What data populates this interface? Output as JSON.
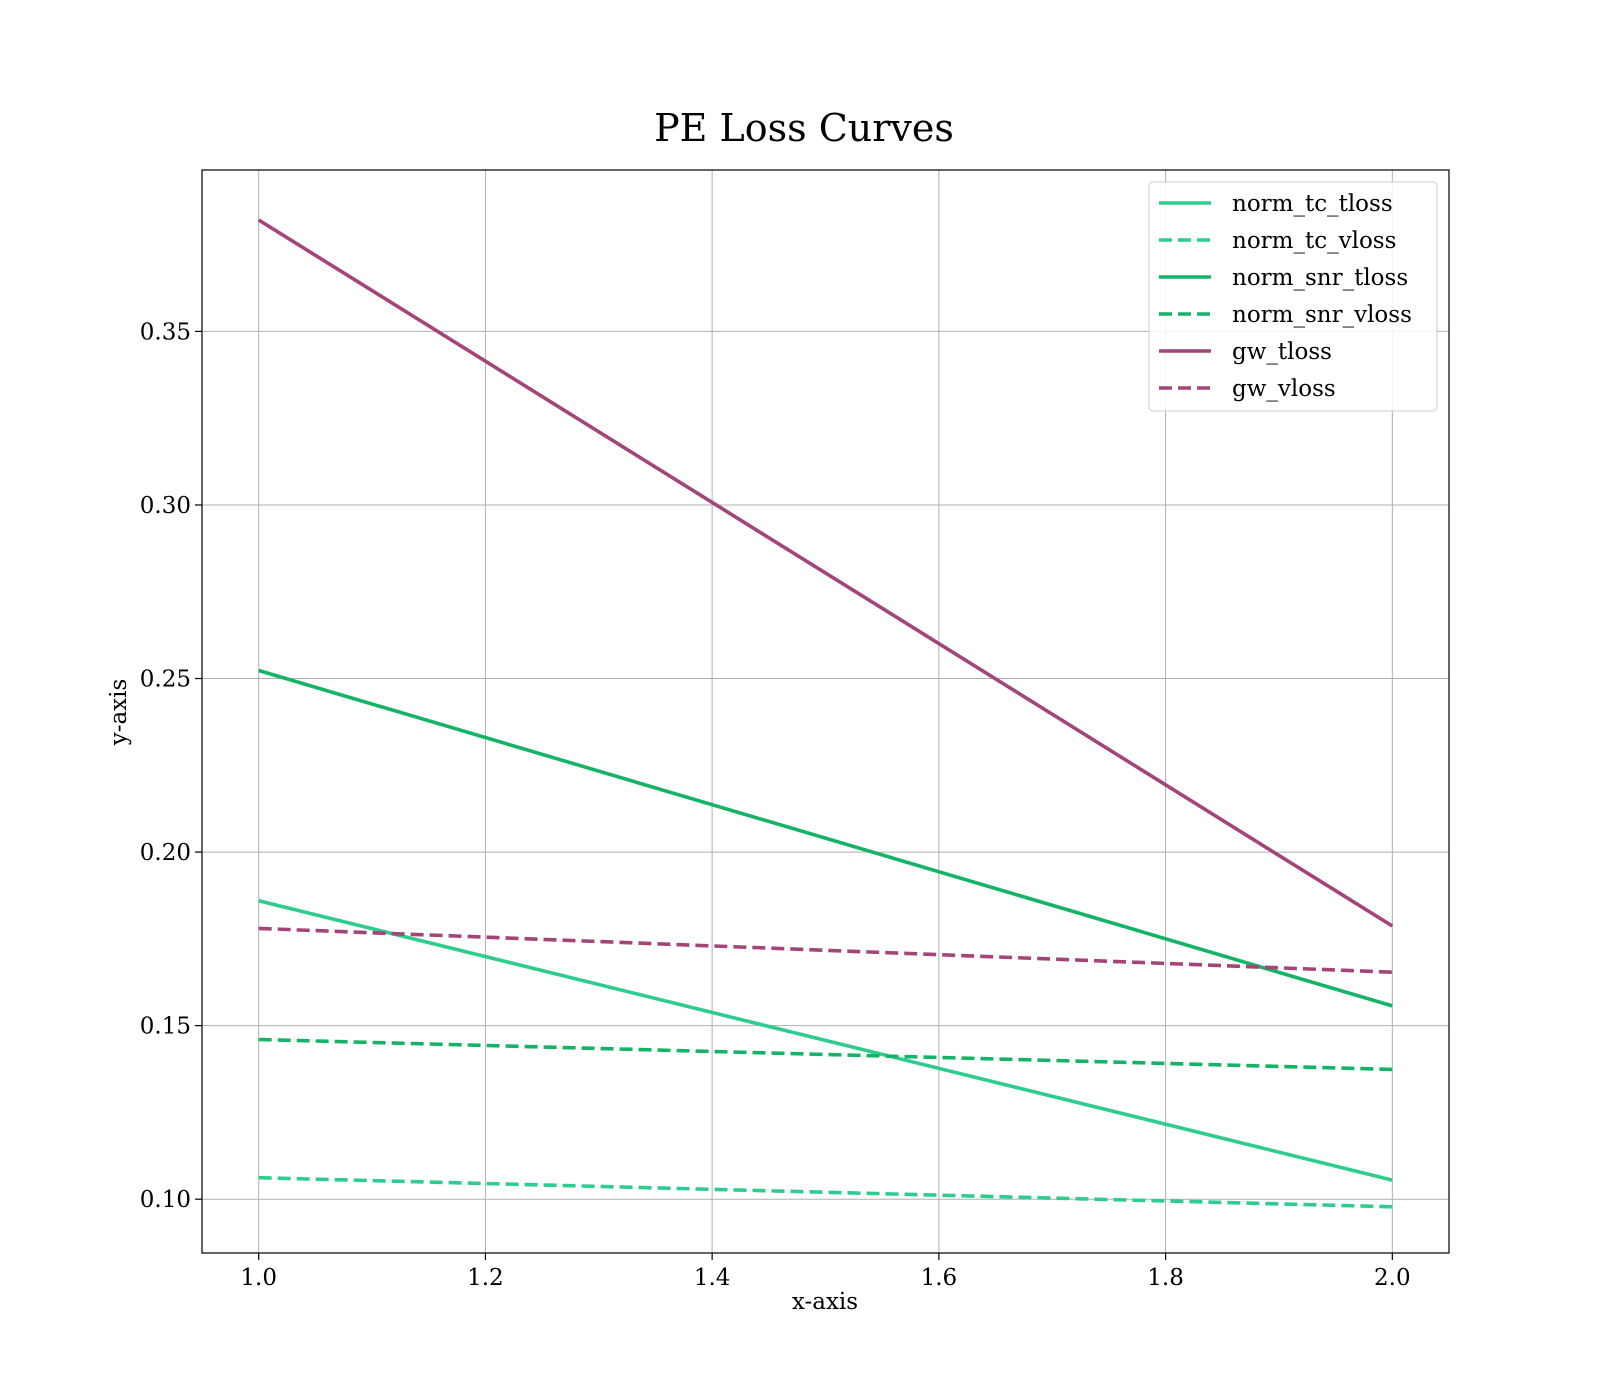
{
  "chart_data": {
    "type": "line",
    "title": "PE Loss Curves",
    "xlabel": "x-axis",
    "ylabel": "y-axis",
    "xlim": [
      0.95,
      2.05
    ],
    "ylim": [
      0.0845,
      0.3965
    ],
    "xticks": [
      1.0,
      1.2,
      1.4,
      1.6,
      1.8,
      2.0
    ],
    "xtick_labels": [
      "1.0",
      "1.2",
      "1.4",
      "1.6",
      "1.8",
      "2.0"
    ],
    "yticks": [
      0.1,
      0.15,
      0.2,
      0.25,
      0.3,
      0.35
    ],
    "ytick_labels": [
      "0.10",
      "0.15",
      "0.20",
      "0.25",
      "0.30",
      "0.35"
    ],
    "grid": true,
    "legend_position": "top-right",
    "series": [
      {
        "name": "norm_tc_tloss",
        "color": "#2ecc8f",
        "style": "solid",
        "x": [
          1.0,
          2.0
        ],
        "y": [
          0.186,
          0.1055
        ]
      },
      {
        "name": "norm_tc_vloss",
        "color": "#2ecc8f",
        "style": "dashed",
        "x": [
          1.0,
          2.0
        ],
        "y": [
          0.1062,
          0.0978
        ]
      },
      {
        "name": "norm_snr_tloss",
        "color": "#15b366",
        "style": "solid",
        "x": [
          1.0,
          2.0
        ],
        "y": [
          0.2523,
          0.1557
        ]
      },
      {
        "name": "norm_snr_vloss",
        "color": "#15b366",
        "style": "dashed",
        "x": [
          1.0,
          2.0
        ],
        "y": [
          0.146,
          0.1374
        ]
      },
      {
        "name": "gw_tloss",
        "color": "#a34579",
        "style": "solid",
        "x": [
          1.0,
          2.0
        ],
        "y": [
          0.3821,
          0.1787
        ]
      },
      {
        "name": "gw_vloss",
        "color": "#a34579",
        "style": "dashed",
        "x": [
          1.0,
          2.0
        ],
        "y": [
          0.178,
          0.1654
        ]
      }
    ]
  }
}
